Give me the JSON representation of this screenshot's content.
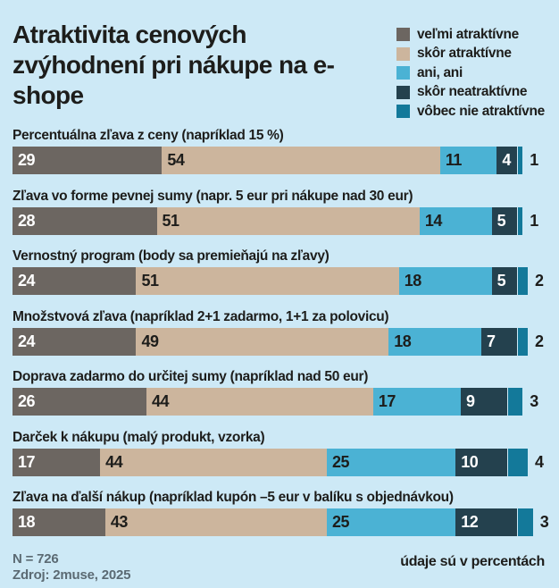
{
  "title": "Atraktivita cenových zvýhodnení pri nákupe na e-shope",
  "colors": {
    "background": "#cde9f6",
    "text": "#1d1d1b",
    "muted_text": "#5b6a73",
    "series": [
      "#6c6661",
      "#ccb59d",
      "#4bb2d4",
      "#24414e",
      "#13799a"
    ]
  },
  "chart_data": {
    "type": "bar",
    "stacked": true,
    "orientation": "horizontal",
    "unit": "percent",
    "title": "Atraktivita cenových zvýhodnení pri nákupe na e-shope",
    "xlim": [
      0,
      100
    ],
    "grid": false,
    "legend_position": "top-right",
    "categories": [
      "Percentuálna zľava z ceny (napríklad 15 %)",
      "Zľava vo forme pevnej sumy (napr. 5 eur pri nákupe nad 30 eur)",
      "Vernostný program (body sa premieňajú na zľavy)",
      "Množstvová zľava (napríklad 2+1 zadarmo, 1+1 za polovicu)",
      "Doprava zadarmo do určitej sumy (napríklad nad 50 eur)",
      "Darček k nákupu (malý produkt, vzorka)",
      "Zľava na ďalší nákup (napríklad kupón –5 eur v balíku s objednávkou)"
    ],
    "series": [
      {
        "name": "veľmi atraktívne",
        "color": "#6c6661",
        "label_color": "white",
        "values": [
          29,
          28,
          24,
          24,
          26,
          17,
          18
        ]
      },
      {
        "name": "skôr atraktívne",
        "color": "#ccb59d",
        "label_color": "dark",
        "values": [
          54,
          51,
          51,
          49,
          44,
          44,
          43
        ]
      },
      {
        "name": "ani, ani",
        "color": "#4bb2d4",
        "label_color": "dark",
        "values": [
          11,
          14,
          18,
          18,
          17,
          25,
          25
        ]
      },
      {
        "name": "skôr neatraktívne",
        "color": "#24414e",
        "label_color": "white",
        "values": [
          4,
          5,
          5,
          7,
          9,
          10,
          12
        ]
      },
      {
        "name": "vôbec nie atraktívne",
        "color": "#13799a",
        "label_color": "outside",
        "values": [
          1,
          1,
          2,
          2,
          3,
          4,
          3
        ]
      }
    ]
  },
  "footer": {
    "n": "N = 726",
    "source": "Zdroj: 2muse, 2025",
    "note": "údaje sú v percentách"
  }
}
